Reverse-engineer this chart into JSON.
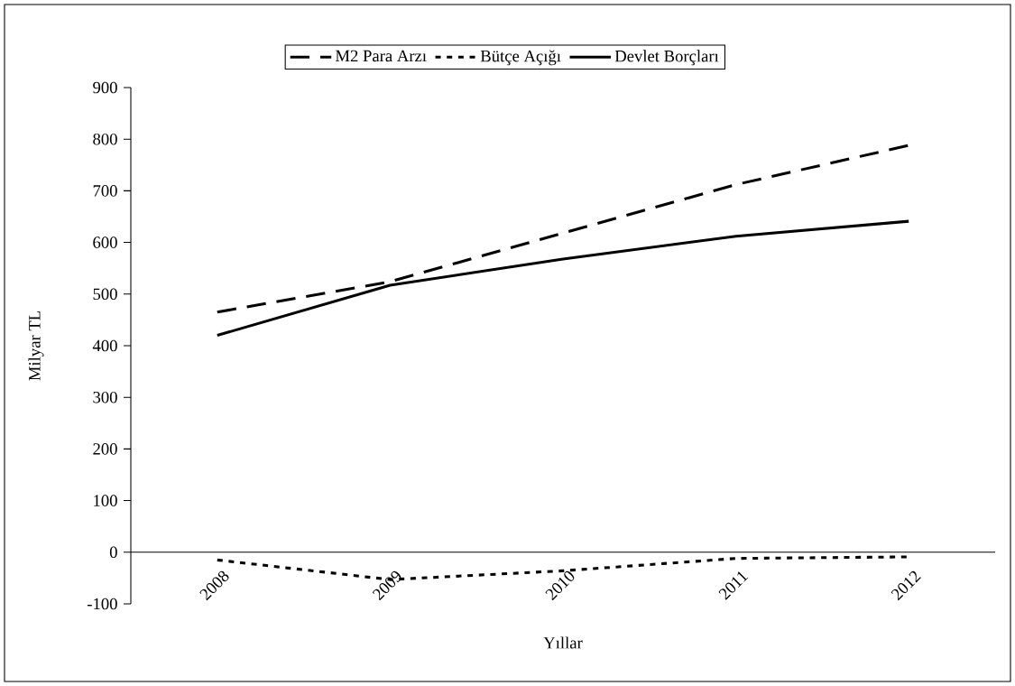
{
  "chart_data": {
    "type": "line",
    "xlabel": "Yıllar",
    "ylabel": "Milyar TL",
    "categories": [
      "2008",
      "2009",
      "2010",
      "2011",
      "2012"
    ],
    "series": [
      {
        "name": "M2 Para Arzı",
        "color": "#000000",
        "line_style": "dashed",
        "values": [
          465,
          524,
          618,
          712,
          788
        ]
      },
      {
        "name": "Bütçe Açığı",
        "color": "#000000",
        "line_style": "dotted",
        "values": [
          -15,
          -53,
          -36,
          -12,
          -9
        ]
      },
      {
        "name": "Devlet Borçları",
        "color": "#000000",
        "line_style": "solid",
        "values": [
          420,
          517,
          568,
          612,
          641
        ]
      }
    ],
    "ylim": [
      -100,
      900
    ],
    "yticks": [
      -100,
      0,
      100,
      200,
      300,
      400,
      500,
      600,
      700,
      800,
      900
    ],
    "grid": false,
    "legend": "top",
    "marker": "none"
  }
}
